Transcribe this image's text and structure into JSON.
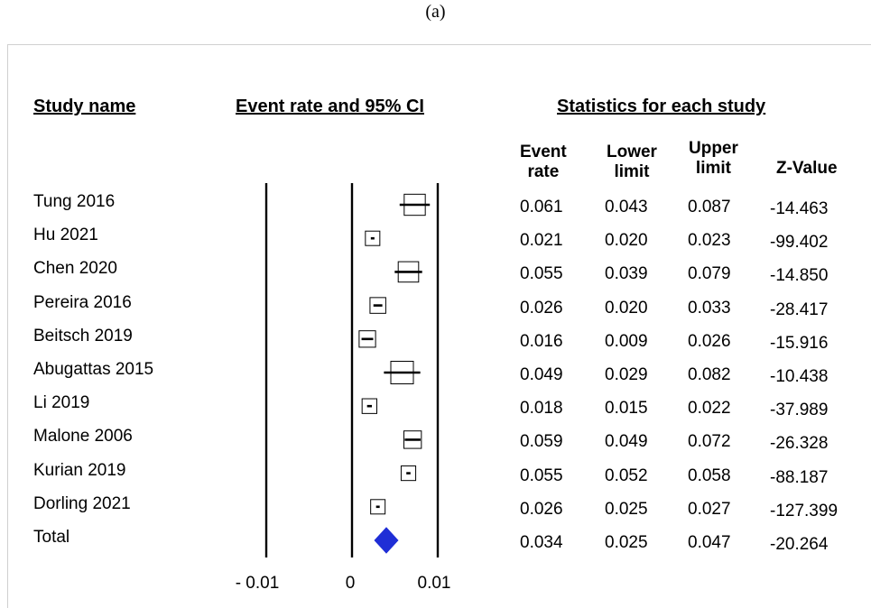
{
  "panel_label": "(a)",
  "headers": {
    "study": "Study name",
    "plot": "Event rate and 95% CI",
    "stats": "Statistics for each study"
  },
  "columns": {
    "event_rate": [
      "Event",
      "rate"
    ],
    "lower_limit": [
      "Lower",
      "limit"
    ],
    "upper_limit": [
      "Upper",
      "limit"
    ],
    "z_value": "Z-Value"
  },
  "axis_ticks": [
    "- 0.01",
    "0",
    "0.01"
  ],
  "chart_data": {
    "type": "forest",
    "title": "Event rate and 95% CI",
    "xlim": [
      -0.01,
      0.01
    ],
    "xticks": [
      -0.01,
      0,
      0.01
    ],
    "studies": [
      {
        "name": "Tung 2016",
        "event_rate": 0.061,
        "lower": 0.043,
        "upper": 0.087,
        "z": -14.463
      },
      {
        "name": "Hu 2021",
        "event_rate": 0.021,
        "lower": 0.02,
        "upper": 0.023,
        "z": -99.402
      },
      {
        "name": "Chen 2020",
        "event_rate": 0.055,
        "lower": 0.039,
        "upper": 0.079,
        "z": -14.85
      },
      {
        "name": "Pereira 2016",
        "event_rate": 0.026,
        "lower": 0.02,
        "upper": 0.033,
        "z": -28.417
      },
      {
        "name": "Beitsch 2019",
        "event_rate": 0.016,
        "lower": 0.009,
        "upper": 0.026,
        "z": -15.916
      },
      {
        "name": "Abugattas 2015",
        "event_rate": 0.049,
        "lower": 0.029,
        "upper": 0.082,
        "z": -10.438
      },
      {
        "name": "Li 2019",
        "event_rate": 0.018,
        "lower": 0.015,
        "upper": 0.022,
        "z": -37.989
      },
      {
        "name": "Malone 2006",
        "event_rate": 0.059,
        "lower": 0.049,
        "upper": 0.072,
        "z": -26.328
      },
      {
        "name": "Kurian 2019",
        "event_rate": 0.055,
        "lower": 0.052,
        "upper": 0.058,
        "z": -88.187
      },
      {
        "name": "Dorling 2021",
        "event_rate": 0.026,
        "lower": 0.025,
        "upper": 0.027,
        "z": -127.399
      }
    ],
    "total": {
      "name": "Total",
      "event_rate": 0.034,
      "lower": 0.025,
      "upper": 0.047,
      "z": -20.264
    },
    "colors": {
      "summary_diamond": "#1f2ed6",
      "lines": "#000000"
    }
  }
}
